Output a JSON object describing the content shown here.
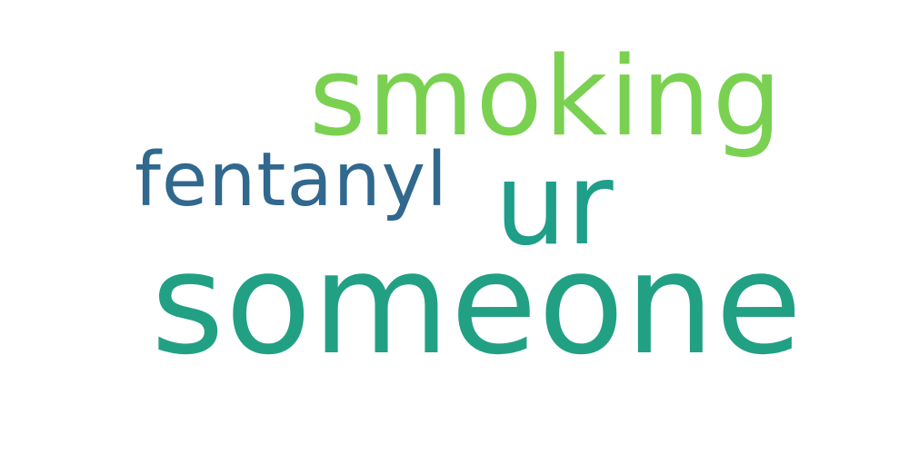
{
  "words": [
    {
      "text": "smoking",
      "color": "#7ad151"
    },
    {
      "text": "fentanyl",
      "color": "#31688e"
    },
    {
      "text": "ur",
      "color": "#1f9e89"
    },
    {
      "text": "someone",
      "color": "#22a084"
    }
  ]
}
